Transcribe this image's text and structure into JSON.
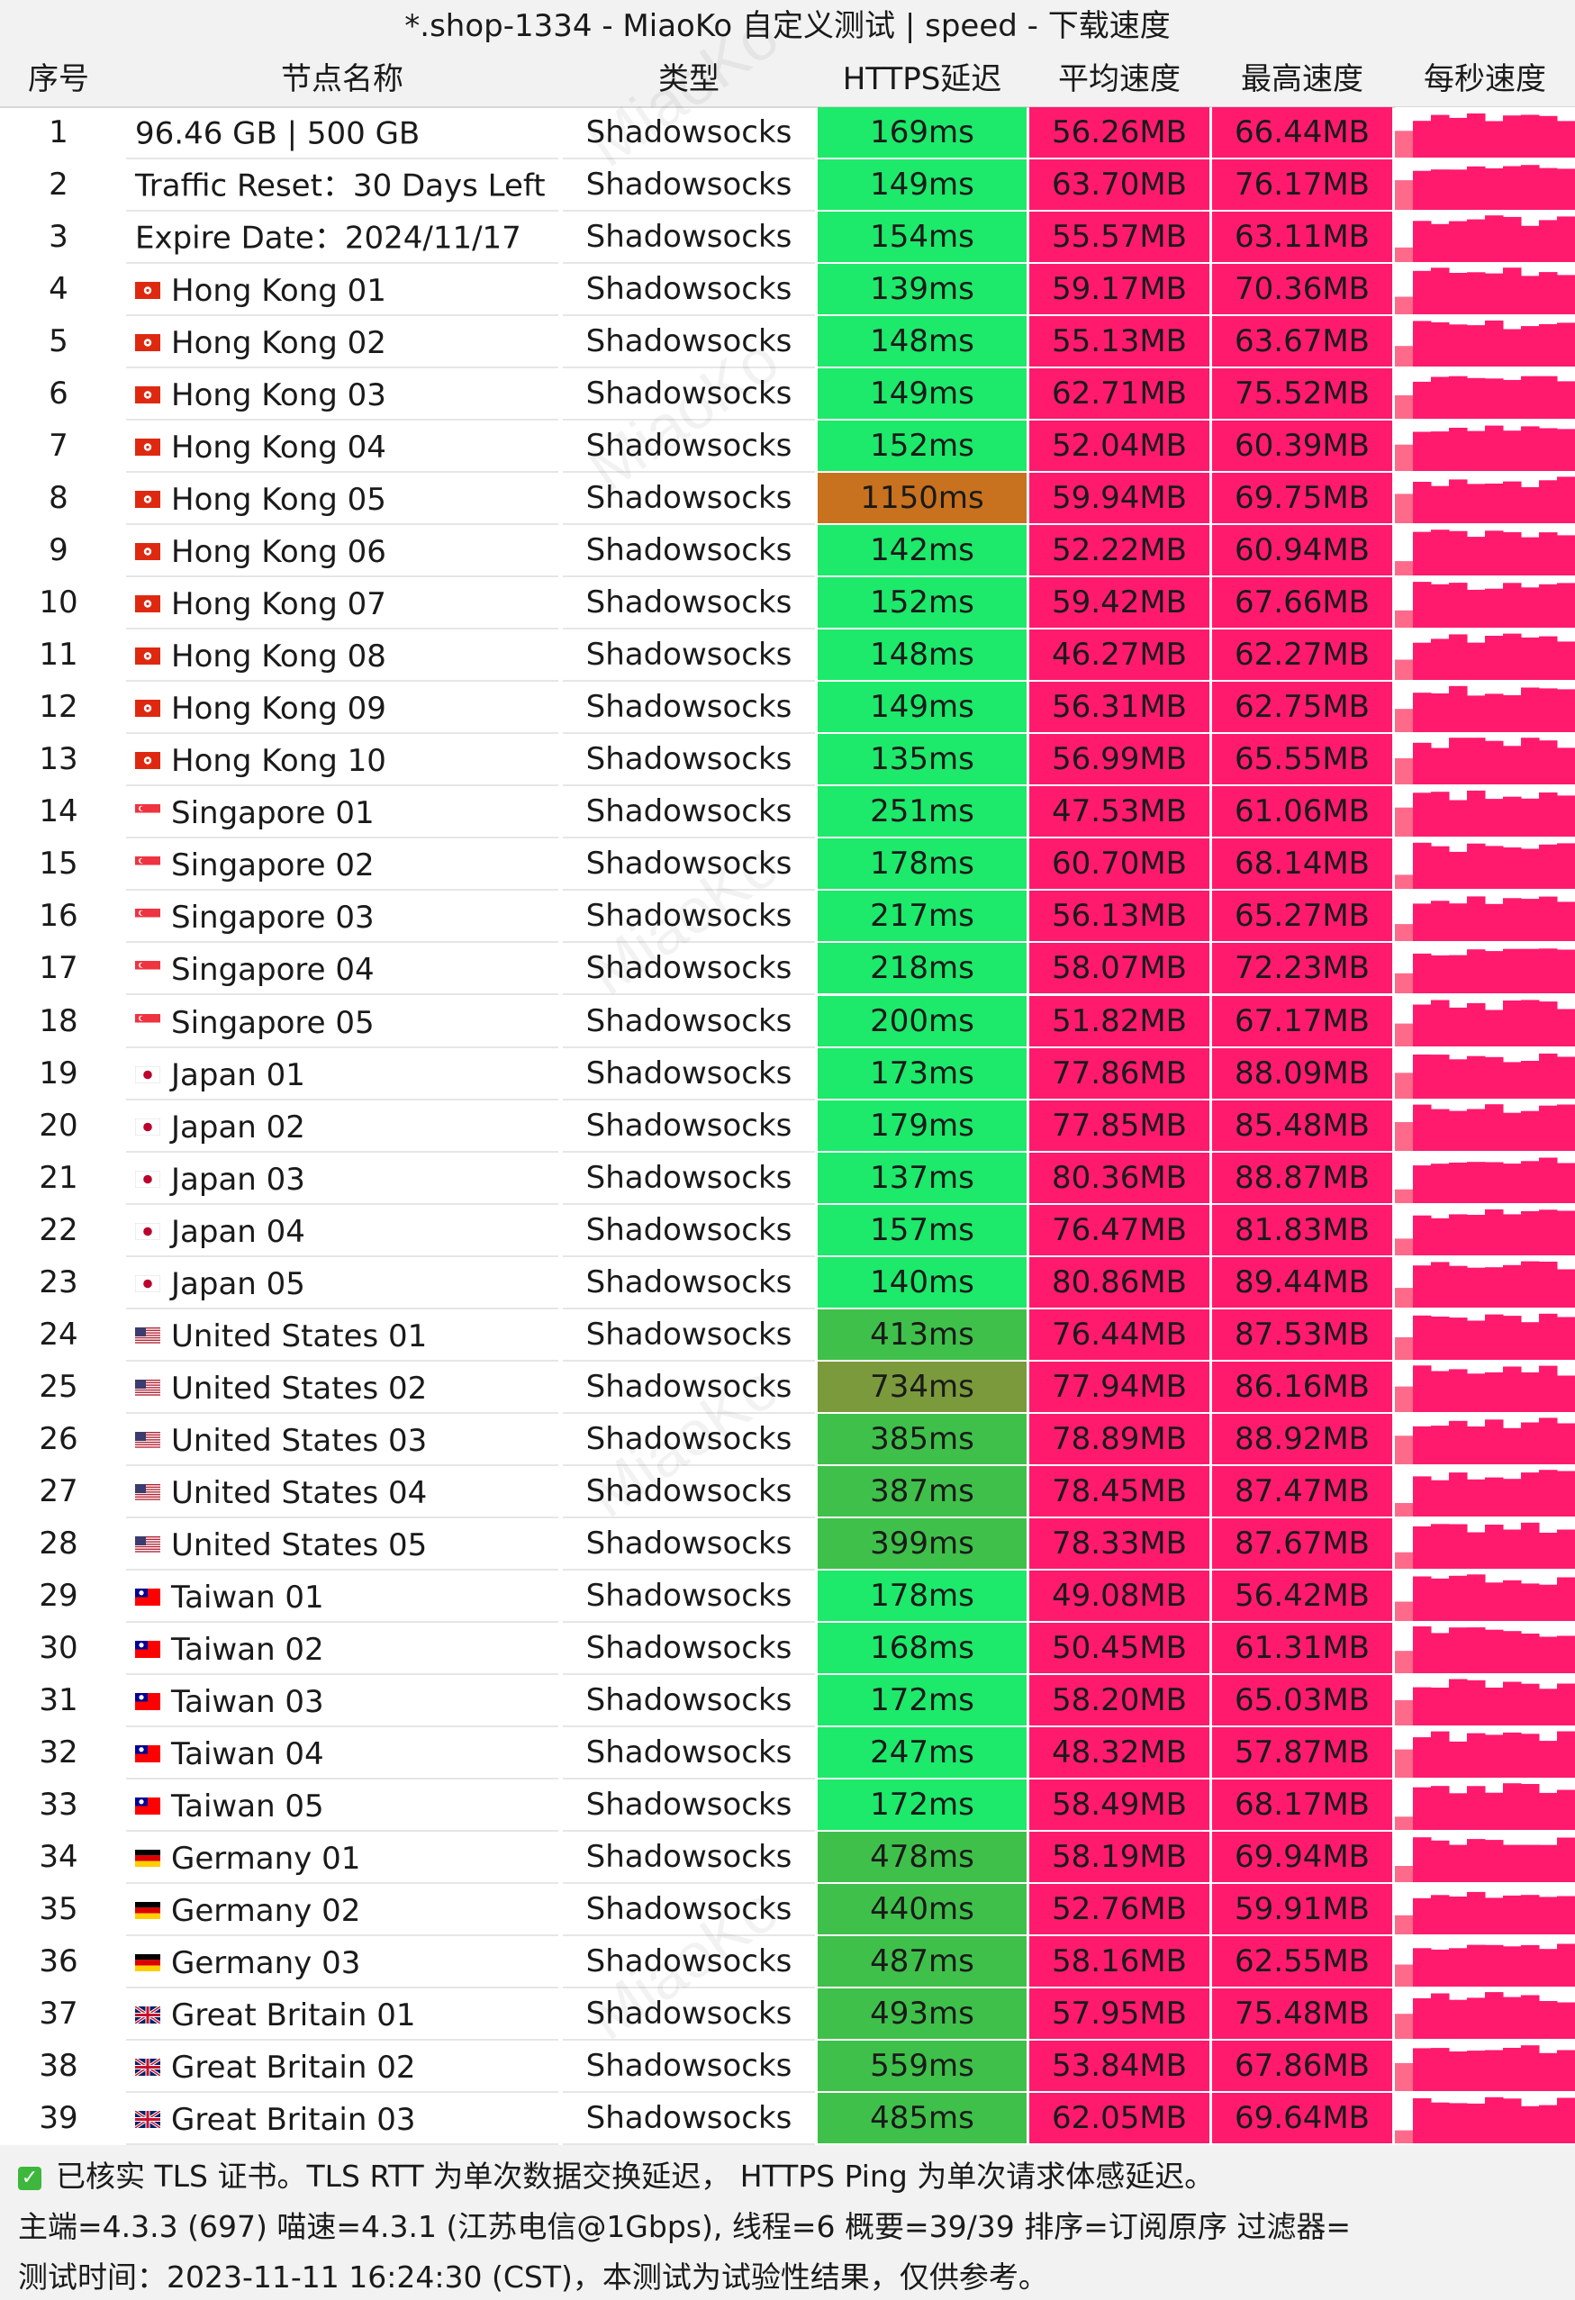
{
  "title": "*.shop-1334 - MiaoKo 自定义测试 | speed - 下载速度",
  "headers": [
    "序号",
    "节点名称",
    "类型",
    "HTTPS延迟",
    "平均速度",
    "最高速度",
    "每秒速度"
  ],
  "rows": [
    {
      "idx": "1",
      "flag": "",
      "name": "96.46 GB | 500 GB",
      "type": "Shadowsocks",
      "latency": "169ms",
      "avg": "56.26MB",
      "max": "66.44MB"
    },
    {
      "idx": "2",
      "flag": "",
      "name": "Traffic Reset：30 Days Left",
      "type": "Shadowsocks",
      "latency": "149ms",
      "avg": "63.70MB",
      "max": "76.17MB"
    },
    {
      "idx": "3",
      "flag": "",
      "name": "Expire Date：2024/11/17",
      "type": "Shadowsocks",
      "latency": "154ms",
      "avg": "55.57MB",
      "max": "63.11MB"
    },
    {
      "idx": "4",
      "flag": "hk",
      "name": "Hong Kong 01",
      "type": "Shadowsocks",
      "latency": "139ms",
      "avg": "59.17MB",
      "max": "70.36MB"
    },
    {
      "idx": "5",
      "flag": "hk",
      "name": "Hong Kong 02",
      "type": "Shadowsocks",
      "latency": "148ms",
      "avg": "55.13MB",
      "max": "63.67MB"
    },
    {
      "idx": "6",
      "flag": "hk",
      "name": "Hong Kong 03",
      "type": "Shadowsocks",
      "latency": "149ms",
      "avg": "62.71MB",
      "max": "75.52MB"
    },
    {
      "idx": "7",
      "flag": "hk",
      "name": "Hong Kong 04",
      "type": "Shadowsocks",
      "latency": "152ms",
      "avg": "52.04MB",
      "max": "60.39MB"
    },
    {
      "idx": "8",
      "flag": "hk",
      "name": "Hong Kong 05",
      "type": "Shadowsocks",
      "latency": "1150ms",
      "avg": "59.94MB",
      "max": "69.75MB"
    },
    {
      "idx": "9",
      "flag": "hk",
      "name": "Hong Kong 06",
      "type": "Shadowsocks",
      "latency": "142ms",
      "avg": "52.22MB",
      "max": "60.94MB"
    },
    {
      "idx": "10",
      "flag": "hk",
      "name": "Hong Kong 07",
      "type": "Shadowsocks",
      "latency": "152ms",
      "avg": "59.42MB",
      "max": "67.66MB"
    },
    {
      "idx": "11",
      "flag": "hk",
      "name": "Hong Kong 08",
      "type": "Shadowsocks",
      "latency": "148ms",
      "avg": "46.27MB",
      "max": "62.27MB"
    },
    {
      "idx": "12",
      "flag": "hk",
      "name": "Hong Kong 09",
      "type": "Shadowsocks",
      "latency": "149ms",
      "avg": "56.31MB",
      "max": "62.75MB"
    },
    {
      "idx": "13",
      "flag": "hk",
      "name": "Hong Kong 10",
      "type": "Shadowsocks",
      "latency": "135ms",
      "avg": "56.99MB",
      "max": "65.55MB"
    },
    {
      "idx": "14",
      "flag": "sg",
      "name": "Singapore 01",
      "type": "Shadowsocks",
      "latency": "251ms",
      "avg": "47.53MB",
      "max": "61.06MB"
    },
    {
      "idx": "15",
      "flag": "sg",
      "name": "Singapore 02",
      "type": "Shadowsocks",
      "latency": "178ms",
      "avg": "60.70MB",
      "max": "68.14MB"
    },
    {
      "idx": "16",
      "flag": "sg",
      "name": "Singapore 03",
      "type": "Shadowsocks",
      "latency": "217ms",
      "avg": "56.13MB",
      "max": "65.27MB"
    },
    {
      "idx": "17",
      "flag": "sg",
      "name": "Singapore 04",
      "type": "Shadowsocks",
      "latency": "218ms",
      "avg": "58.07MB",
      "max": "72.23MB"
    },
    {
      "idx": "18",
      "flag": "sg",
      "name": "Singapore 05",
      "type": "Shadowsocks",
      "latency": "200ms",
      "avg": "51.82MB",
      "max": "67.17MB"
    },
    {
      "idx": "19",
      "flag": "jp",
      "name": "Japan 01",
      "type": "Shadowsocks",
      "latency": "173ms",
      "avg": "77.86MB",
      "max": "88.09MB"
    },
    {
      "idx": "20",
      "flag": "jp",
      "name": "Japan 02",
      "type": "Shadowsocks",
      "latency": "179ms",
      "avg": "77.85MB",
      "max": "85.48MB"
    },
    {
      "idx": "21",
      "flag": "jp",
      "name": "Japan 03",
      "type": "Shadowsocks",
      "latency": "137ms",
      "avg": "80.36MB",
      "max": "88.87MB"
    },
    {
      "idx": "22",
      "flag": "jp",
      "name": "Japan 04",
      "type": "Shadowsocks",
      "latency": "157ms",
      "avg": "76.47MB",
      "max": "81.83MB"
    },
    {
      "idx": "23",
      "flag": "jp",
      "name": "Japan 05",
      "type": "Shadowsocks",
      "latency": "140ms",
      "avg": "80.86MB",
      "max": "89.44MB"
    },
    {
      "idx": "24",
      "flag": "us",
      "name": "United States 01",
      "type": "Shadowsocks",
      "latency": "413ms",
      "avg": "76.44MB",
      "max": "87.53MB"
    },
    {
      "idx": "25",
      "flag": "us",
      "name": "United States 02",
      "type": "Shadowsocks",
      "latency": "734ms",
      "avg": "77.94MB",
      "max": "86.16MB"
    },
    {
      "idx": "26",
      "flag": "us",
      "name": "United States 03",
      "type": "Shadowsocks",
      "latency": "385ms",
      "avg": "78.89MB",
      "max": "88.92MB"
    },
    {
      "idx": "27",
      "flag": "us",
      "name": "United States 04",
      "type": "Shadowsocks",
      "latency": "387ms",
      "avg": "78.45MB",
      "max": "87.47MB"
    },
    {
      "idx": "28",
      "flag": "us",
      "name": "United States 05",
      "type": "Shadowsocks",
      "latency": "399ms",
      "avg": "78.33MB",
      "max": "87.67MB"
    },
    {
      "idx": "29",
      "flag": "tw",
      "name": "Taiwan 01",
      "type": "Shadowsocks",
      "latency": "178ms",
      "avg": "49.08MB",
      "max": "56.42MB"
    },
    {
      "idx": "30",
      "flag": "tw",
      "name": "Taiwan 02",
      "type": "Shadowsocks",
      "latency": "168ms",
      "avg": "50.45MB",
      "max": "61.31MB"
    },
    {
      "idx": "31",
      "flag": "tw",
      "name": "Taiwan 03",
      "type": "Shadowsocks",
      "latency": "172ms",
      "avg": "58.20MB",
      "max": "65.03MB"
    },
    {
      "idx": "32",
      "flag": "tw",
      "name": "Taiwan 04",
      "type": "Shadowsocks",
      "latency": "247ms",
      "avg": "48.32MB",
      "max": "57.87MB"
    },
    {
      "idx": "33",
      "flag": "tw",
      "name": "Taiwan 05",
      "type": "Shadowsocks",
      "latency": "172ms",
      "avg": "58.49MB",
      "max": "68.17MB"
    },
    {
      "idx": "34",
      "flag": "de",
      "name": "Germany 01",
      "type": "Shadowsocks",
      "latency": "478ms",
      "avg": "58.19MB",
      "max": "69.94MB"
    },
    {
      "idx": "35",
      "flag": "de",
      "name": "Germany 02",
      "type": "Shadowsocks",
      "latency": "440ms",
      "avg": "52.76MB",
      "max": "59.91MB"
    },
    {
      "idx": "36",
      "flag": "de",
      "name": "Germany 03",
      "type": "Shadowsocks",
      "latency": "487ms",
      "avg": "58.16MB",
      "max": "62.55MB"
    },
    {
      "idx": "37",
      "flag": "gb",
      "name": "Great Britain 01",
      "type": "Shadowsocks",
      "latency": "493ms",
      "avg": "57.95MB",
      "max": "75.48MB"
    },
    {
      "idx": "38",
      "flag": "gb",
      "name": "Great Britain 02",
      "type": "Shadowsocks",
      "latency": "559ms",
      "avg": "53.84MB",
      "max": "67.86MB"
    },
    {
      "idx": "39",
      "flag": "gb",
      "name": "Great Britain 03",
      "type": "Shadowsocks",
      "latency": "485ms",
      "avg": "62.05MB",
      "max": "69.64MB"
    }
  ],
  "footer": {
    "line1": "已核实 TLS 证书。TLS RTT 为单次数据交换延迟， HTTPS Ping 为单次请求体感延迟。",
    "line2": "主端=4.3.3 (697) 喵速=4.3.1 (江苏电信@1Gbps), 线程=6 概要=39/39 排序=订阅原序 过滤器=",
    "line3": "测试时间：2023-11-11 16:24:30 (CST)，本测试为试验性结果，仅供参考。"
  },
  "watermark": "MiaoKo",
  "colors": {
    "latency_good": "#1de96a",
    "latency_mid": "#3fc04a",
    "latency_warn": "#7a9a3c",
    "latency_bad": "#c8711e",
    "speed_bg": "#ff1a6e",
    "spark_light": "#ff6a8a"
  }
}
